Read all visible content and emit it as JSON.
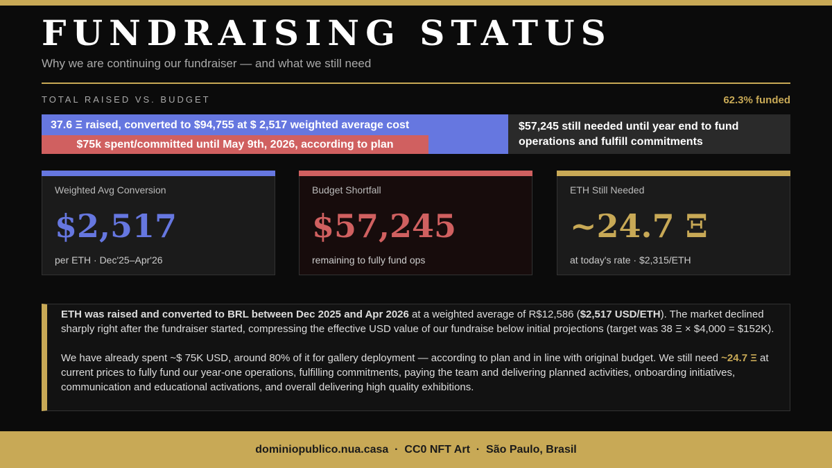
{
  "header": {
    "title": "FUNDRAISING STATUS",
    "subtitle": "Why we are continuing our fundraiser — and what we still need"
  },
  "progress": {
    "heading": "TOTAL RAISED VS. BUDGET",
    "funded": {
      "value": 62.3,
      "label": "62.3% funded"
    },
    "raised_text": "37.6 Ξ raised, converted to $94,755 at $ 2,517 weighted average cost",
    "spent_text": "$75k spent/committed until May 9th, 2026, according to plan",
    "needed_text": "$57,245 still needed until year end to fund operations and fulfill commitments"
  },
  "cards": [
    {
      "label": "Weighted Avg Conversion",
      "value": "$2,517",
      "caption": "per ETH · Dec'25–Apr'26"
    },
    {
      "label": "Budget Shortfall",
      "value": "$57,245",
      "caption": "remaining to fully fund ops"
    },
    {
      "label": "ETH Still Needed",
      "value": "~24.7 Ξ",
      "caption": "at today's rate · $2,315/ETH"
    }
  ],
  "note": {
    "paragraphs": [
      [
        "ETH was raised and converted to BRL between Dec 2025 and Apr 2026",
        " at a weighted average of R$12,586 (",
        "$2,517 USD/ETH",
        "). The market declined sharply right after the fundraiser started, compressing the effective USD value of our fundraise below initial projections (target was 38 Ξ × $4,000 = $152K)."
      ],
      [
        "We have already spent ~$ 75K USD, around 80% of it for gallery deployment — according to plan and in line with original budget. We still need ",
        "~24.7 Ξ",
        " at current prices to fully fund our year-one operations, fulfilling commitments, paying the team and delivering planned activities, onboarding initiatives, communication and educational activations, and overall delivering high quality exhibitions."
      ]
    ]
  },
  "footer": "dominiopublico.nua.casa  ·  CC0 NFT Art  ·  São Paulo, Brasil"
}
